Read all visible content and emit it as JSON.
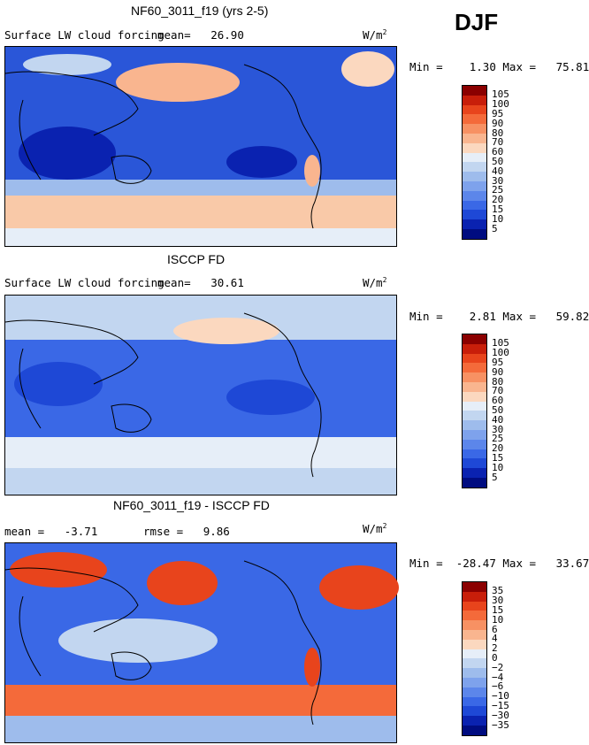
{
  "season": "DJF",
  "units": "W/m",
  "units_sup": "2",
  "chart_data": [
    {
      "type": "heatmap",
      "title": "NF60_3011_f19 (yrs 2-5)",
      "variable": "Surface LW cloud forcing",
      "mean_label": "mean=",
      "mean": "26.90",
      "min_label": "Min =",
      "min": "1.30",
      "max_label": "Max =",
      "max": "75.81",
      "legend_levels": [
        "105",
        "100",
        "95",
        "90",
        "80",
        "70",
        "60",
        "50",
        "40",
        "30",
        "25",
        "20",
        "15",
        "10",
        "5"
      ],
      "legend_colors": [
        "#8b0000",
        "#c81e0a",
        "#e8441c",
        "#f46a3a",
        "#f79163",
        "#f9b58f",
        "#fbd8bf",
        "#e6eef8",
        "#c2d6f0",
        "#9ebcec",
        "#7ea2ec",
        "#5c86ea",
        "#3a68e6",
        "#1e48d6",
        "#0a22b0",
        "#000c80"
      ],
      "colorbar": [
        {
          "value": "105"
        },
        {
          "value": "100"
        },
        {
          "value": "95"
        },
        {
          "value": "90"
        },
        {
          "value": "80"
        },
        {
          "value": "70"
        },
        {
          "value": "60"
        },
        {
          "value": "50"
        },
        {
          "value": "40"
        },
        {
          "value": "30"
        },
        {
          "value": "25"
        },
        {
          "value": "20"
        },
        {
          "value": "15"
        },
        {
          "value": "10"
        },
        {
          "value": "5"
        }
      ]
    },
    {
      "type": "heatmap",
      "title": "ISCCP FD",
      "variable": "Surface LW cloud forcing",
      "mean_label": "mean=",
      "mean": "30.61",
      "min_label": "Min =",
      "min": "2.81",
      "max_label": "Max =",
      "max": "59.82",
      "legend_levels": [
        "105",
        "100",
        "95",
        "90",
        "80",
        "70",
        "60",
        "50",
        "40",
        "30",
        "25",
        "20",
        "15",
        "10",
        "5"
      ],
      "legend_colors": [
        "#8b0000",
        "#c81e0a",
        "#e8441c",
        "#f46a3a",
        "#f79163",
        "#f9b58f",
        "#fbd8bf",
        "#e6eef8",
        "#c2d6f0",
        "#9ebcec",
        "#7ea2ec",
        "#5c86ea",
        "#3a68e6",
        "#1e48d6",
        "#0a22b0",
        "#000c80"
      ]
    },
    {
      "type": "heatmap",
      "title": "NF60_3011_f19 - ISCCP FD",
      "mean_label": "mean =",
      "mean": "-3.71",
      "rmse_label": "rmse =",
      "rmse": "9.86",
      "min_label": "Min =",
      "min": "-28.47",
      "max_label": "Max =",
      "max": "33.67",
      "legend_levels": [
        "35",
        "30",
        "15",
        "10",
        "6",
        "4",
        "2",
        "0",
        "−2",
        "−4",
        "−6",
        "−10",
        "−15",
        "−30",
        "−35"
      ],
      "legend_colors": [
        "#8b0000",
        "#c81e0a",
        "#e8441c",
        "#f46a3a",
        "#f79163",
        "#f9b58f",
        "#fbd8bf",
        "#e6eef8",
        "#c2d6f0",
        "#9ebcec",
        "#7ea2ec",
        "#5c86ea",
        "#3a68e6",
        "#1e48d6",
        "#0a22b0",
        "#000c80"
      ]
    }
  ]
}
